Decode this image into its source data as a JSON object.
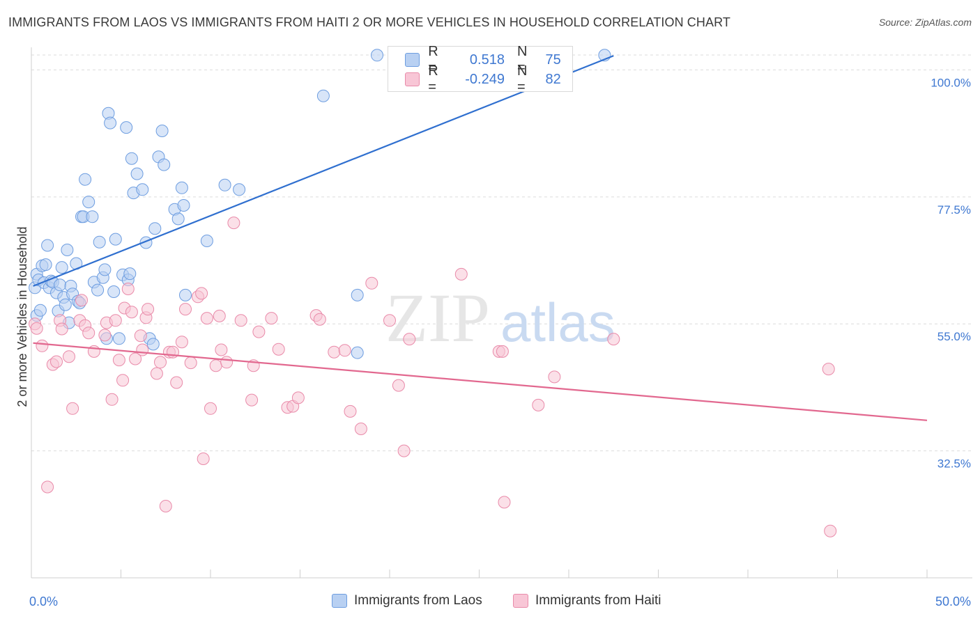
{
  "title": "IMMIGRANTS FROM LAOS VS IMMIGRANTS FROM HAITI 2 OR MORE VEHICLES IN HOUSEHOLD CORRELATION CHART",
  "source": "Source: ZipAtlas.com",
  "watermark": {
    "zip": "ZIP",
    "atlas": "atlas"
  },
  "legend": {
    "series1": {
      "r_label": "R =",
      "r_value": "0.518",
      "n_label": "N =",
      "n_value": "75"
    },
    "series2": {
      "r_label": "R =",
      "r_value": "-0.249",
      "n_label": "N =",
      "n_value": "82"
    }
  },
  "colors": {
    "blue_fill": "#b8d0f2",
    "blue_stroke": "#6d9de0",
    "blue_line": "#2f6fcf",
    "pink_fill": "#f8c6d6",
    "pink_stroke": "#e98aa9",
    "pink_line": "#e2688f",
    "axis_label": "#3f78d1",
    "grid": "#dcdcdc"
  },
  "chart_data": {
    "type": "scatter",
    "title": "IMMIGRANTS FROM LAOS VS IMMIGRANTS FROM HAITI 2 OR MORE VEHICLES IN HOUSEHOLD CORRELATION CHART",
    "xlabel": "",
    "ylabel": "2 or more Vehicles in Household",
    "xlim": [
      0,
      50
    ],
    "ylim": [
      10,
      104
    ],
    "x_tick_labels": [
      "0.0%",
      "50.0%"
    ],
    "y_ticks": [
      32.5,
      55.0,
      77.5,
      100.0
    ],
    "y_tick_labels": [
      "32.5%",
      "55.0%",
      "77.5%",
      "100.0%"
    ],
    "grid": true,
    "legend_position": "top-center",
    "series": [
      {
        "name": "Immigrants from Laos",
        "color": "blue",
        "trend": {
          "x": [
            0.1,
            32.5
          ],
          "y": [
            61.7,
            102.5
          ]
        },
        "points": [
          [
            0.2,
            61.4
          ],
          [
            0.3,
            63.8
          ],
          [
            0.3,
            56.5
          ],
          [
            0.4,
            62.8
          ],
          [
            0.5,
            57.4
          ],
          [
            0.6,
            65.3
          ],
          [
            0.7,
            62.3
          ],
          [
            0.8,
            65.5
          ],
          [
            0.9,
            68.9
          ],
          [
            1.0,
            61.4
          ],
          [
            1.1,
            62.6
          ],
          [
            1.2,
            62.4
          ],
          [
            1.4,
            60.5
          ],
          [
            1.5,
            57.3
          ],
          [
            1.6,
            61.9
          ],
          [
            1.7,
            65.0
          ],
          [
            1.8,
            59.7
          ],
          [
            1.9,
            58.4
          ],
          [
            2.0,
            68.1
          ],
          [
            2.1,
            55.2
          ],
          [
            2.2,
            61.7
          ],
          [
            2.3,
            60.3
          ],
          [
            2.5,
            65.7
          ],
          [
            2.6,
            59.0
          ],
          [
            2.7,
            58.7
          ],
          [
            2.8,
            74.0
          ],
          [
            2.9,
            74.0
          ],
          [
            3.0,
            80.6
          ],
          [
            3.2,
            76.6
          ],
          [
            3.4,
            74.0
          ],
          [
            3.5,
            62.4
          ],
          [
            3.7,
            61.0
          ],
          [
            3.8,
            69.5
          ],
          [
            4.0,
            63.2
          ],
          [
            4.1,
            64.6
          ],
          [
            4.2,
            52.4
          ],
          [
            4.3,
            92.3
          ],
          [
            4.4,
            90.6
          ],
          [
            4.6,
            60.7
          ],
          [
            4.7,
            70.0
          ],
          [
            4.9,
            52.4
          ],
          [
            5.1,
            63.7
          ],
          [
            5.3,
            89.8
          ],
          [
            5.4,
            62.8
          ],
          [
            5.5,
            63.9
          ],
          [
            5.6,
            84.3
          ],
          [
            5.7,
            78.2
          ],
          [
            5.9,
            81.6
          ],
          [
            6.2,
            78.8
          ],
          [
            6.4,
            69.4
          ],
          [
            6.6,
            52.4
          ],
          [
            6.8,
            51.4
          ],
          [
            6.9,
            71.9
          ],
          [
            7.1,
            84.6
          ],
          [
            7.3,
            89.2
          ],
          [
            7.4,
            83.2
          ],
          [
            8.0,
            75.3
          ],
          [
            8.2,
            73.6
          ],
          [
            8.4,
            79.1
          ],
          [
            8.5,
            76.0
          ],
          [
            8.6,
            60.1
          ],
          [
            9.8,
            69.7
          ],
          [
            10.8,
            79.6
          ],
          [
            11.6,
            78.8
          ],
          [
            16.3,
            95.4
          ],
          [
            18.2,
            60.1
          ],
          [
            18.2,
            49.9
          ],
          [
            19.3,
            102.6
          ],
          [
            32.0,
            102.6
          ]
        ]
      },
      {
        "name": "Immigrants from Haiti",
        "color": "pink",
        "trend": {
          "x": [
            0.1,
            50.0
          ],
          "y": [
            51.6,
            37.9
          ]
        },
        "points": [
          [
            0.2,
            55.0
          ],
          [
            0.3,
            54.2
          ],
          [
            0.6,
            51.1
          ],
          [
            0.9,
            26.1
          ],
          [
            1.2,
            47.8
          ],
          [
            1.4,
            48.3
          ],
          [
            1.6,
            55.6
          ],
          [
            1.7,
            54.1
          ],
          [
            2.1,
            49.2
          ],
          [
            2.3,
            40.0
          ],
          [
            2.7,
            55.6
          ],
          [
            2.8,
            59.2
          ],
          [
            3.0,
            54.7
          ],
          [
            3.2,
            53.4
          ],
          [
            3.5,
            50.1
          ],
          [
            4.1,
            53.0
          ],
          [
            4.2,
            55.2
          ],
          [
            4.5,
            41.6
          ],
          [
            4.7,
            55.6
          ],
          [
            4.9,
            48.6
          ],
          [
            5.1,
            45.0
          ],
          [
            5.2,
            57.8
          ],
          [
            5.4,
            61.2
          ],
          [
            5.6,
            57.1
          ],
          [
            5.8,
            48.8
          ],
          [
            6.1,
            52.9
          ],
          [
            6.2,
            50.4
          ],
          [
            6.4,
            56.1
          ],
          [
            6.5,
            57.6
          ],
          [
            7.0,
            46.2
          ],
          [
            7.2,
            48.2
          ],
          [
            7.5,
            22.7
          ],
          [
            7.7,
            50.0
          ],
          [
            7.9,
            50.0
          ],
          [
            8.1,
            44.6
          ],
          [
            8.4,
            51.8
          ],
          [
            8.6,
            57.6
          ],
          [
            8.9,
            48.1
          ],
          [
            9.3,
            59.8
          ],
          [
            9.5,
            60.4
          ],
          [
            9.6,
            31.1
          ],
          [
            9.8,
            56.0
          ],
          [
            10.0,
            40.0
          ],
          [
            10.3,
            47.6
          ],
          [
            10.5,
            56.4
          ],
          [
            10.6,
            50.4
          ],
          [
            10.9,
            48.2
          ],
          [
            11.3,
            72.9
          ],
          [
            11.7,
            55.6
          ],
          [
            12.3,
            41.5
          ],
          [
            12.4,
            47.6
          ],
          [
            12.7,
            53.6
          ],
          [
            13.4,
            56.0
          ],
          [
            13.8,
            50.5
          ],
          [
            14.3,
            40.2
          ],
          [
            14.6,
            40.4
          ],
          [
            14.9,
            41.9
          ],
          [
            15.9,
            56.5
          ],
          [
            16.1,
            55.8
          ],
          [
            16.9,
            50.0
          ],
          [
            17.5,
            50.3
          ],
          [
            17.8,
            39.5
          ],
          [
            18.4,
            36.4
          ],
          [
            19.0,
            62.2
          ],
          [
            20.0,
            55.6
          ],
          [
            20.5,
            44.1
          ],
          [
            20.8,
            32.5
          ],
          [
            21.1,
            52.3
          ],
          [
            24.0,
            63.8
          ],
          [
            26.1,
            50.1
          ],
          [
            26.3,
            50.1
          ],
          [
            26.4,
            23.4
          ],
          [
            28.3,
            40.6
          ],
          [
            29.2,
            45.6
          ],
          [
            32.5,
            52.3
          ],
          [
            44.5,
            47.0
          ],
          [
            44.6,
            18.3
          ]
        ]
      }
    ],
    "x_legend": [
      "Immigrants from Laos",
      "Immigrants from Haiti"
    ]
  },
  "bottom_legend": {
    "item1": "Immigrants from Laos",
    "item2": "Immigrants from Haiti"
  }
}
